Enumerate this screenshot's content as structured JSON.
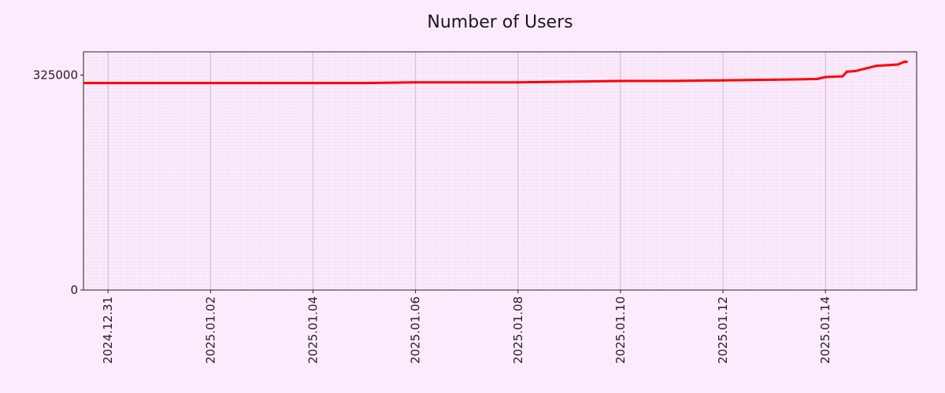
{
  "chart_data": {
    "type": "line",
    "title": "Number of Users",
    "xlabel": "",
    "ylabel": "",
    "x_range": [
      "2024-12-30",
      "2025-01-15"
    ],
    "ylim": [
      0,
      360000
    ],
    "y_ticks": [
      {
        "value": 0,
        "label": "0"
      },
      {
        "value": 325000,
        "label": "325000"
      }
    ],
    "x_ticks": [
      {
        "date": "2024-12-31",
        "label": "2024.12.31"
      },
      {
        "date": "2025-01-02",
        "label": "2025.01.02"
      },
      {
        "date": "2025-01-04",
        "label": "2025.01.04"
      },
      {
        "date": "2025-01-06",
        "label": "2025.01.06"
      },
      {
        "date": "2025-01-08",
        "label": "2025.01.08"
      },
      {
        "date": "2025-01-10",
        "label": "2025.01.10"
      },
      {
        "date": "2025-01-12",
        "label": "2025.01.12"
      },
      {
        "date": "2025-01-14",
        "label": "2025.01.14"
      }
    ],
    "grid": true,
    "series": [
      {
        "name": "",
        "color": "#ff0000",
        "x": [
          "2024-12-30T00:00",
          "2024-12-31T00:00",
          "2025-01-01T00:00",
          "2025-01-02T00:00",
          "2025-01-03T00:00",
          "2025-01-04T00:00",
          "2025-01-05T00:00",
          "2025-01-06T00:00",
          "2025-01-07T00:00",
          "2025-01-08T00:00",
          "2025-01-09T00:00",
          "2025-01-10T00:00",
          "2025-01-11T00:00",
          "2025-01-12T00:00",
          "2025-01-13T00:00",
          "2025-01-13T20:00",
          "2025-01-14T00:00",
          "2025-01-14T08:00",
          "2025-01-14T10:00",
          "2025-01-14T14:00",
          "2025-01-15T00:00",
          "2025-01-15T06:00",
          "2025-01-15T10:00",
          "2025-01-15T13:00",
          "2025-01-15T14:00"
        ],
        "values": [
          313000,
          313000,
          313000,
          313000,
          313000,
          313000,
          313000,
          314000,
          314000,
          314000,
          315000,
          316000,
          316000,
          317000,
          318000,
          319000,
          322000,
          323000,
          330000,
          331000,
          339000,
          340000,
          341000,
          345000,
          345000
        ]
      }
    ]
  }
}
